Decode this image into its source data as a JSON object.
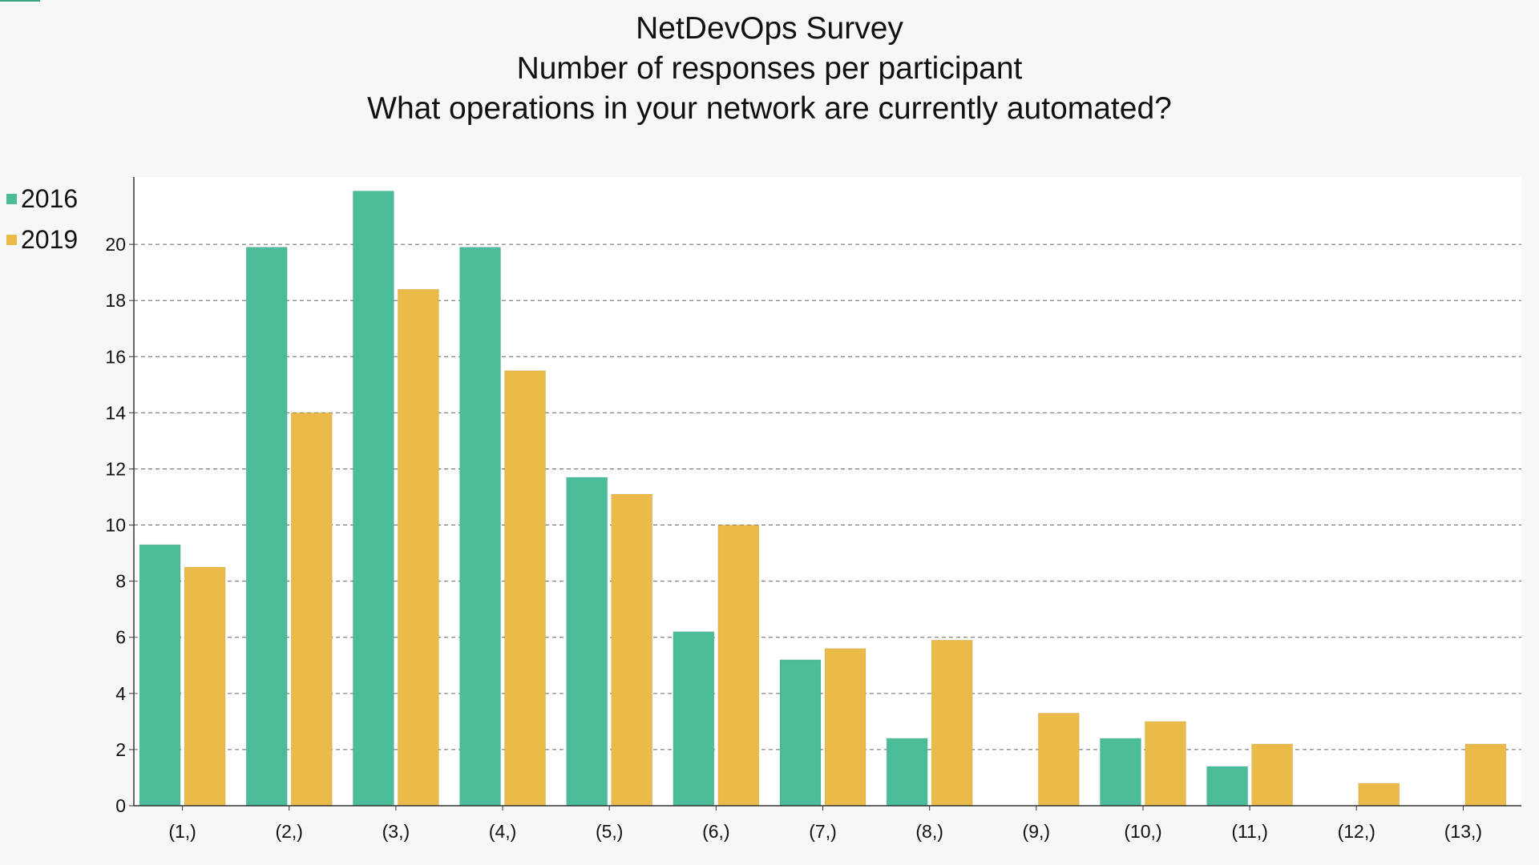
{
  "title": {
    "line1": "NetDevOps Survey",
    "line2": "Number of responses per participant",
    "line3": "What operations in your network are currently automated?"
  },
  "colors": {
    "series_2016": "#4bbc9a",
    "series_2019": "#ebbb4a",
    "grid": "#666666",
    "axis": "#333333",
    "plot_background": "#ffffff",
    "page_background": "#f7f7f7"
  },
  "chart_data": {
    "type": "bar",
    "title": "NetDevOps Survey\nNumber of responses per participant\nWhat operations in your network are currently automated?",
    "xlabel": "",
    "ylabel": "",
    "categories": [
      "(1,)",
      "(2,)",
      "(3,)",
      "(4,)",
      "(5,)",
      "(6,)",
      "(7,)",
      "(8,)",
      "(9,)",
      "(10,)",
      "(11,)",
      "(12,)",
      "(13,)"
    ],
    "series": [
      {
        "name": "2016",
        "values": [
          9.3,
          19.9,
          21.9,
          19.9,
          11.7,
          6.2,
          5.2,
          2.4,
          0,
          2.4,
          1.4,
          0,
          0
        ]
      },
      {
        "name": "2019",
        "values": [
          8.5,
          14.0,
          18.4,
          15.5,
          11.1,
          10.0,
          5.6,
          5.9,
          3.3,
          3.0,
          2.2,
          0.8,
          2.2
        ]
      }
    ],
    "ylim": [
      0,
      22.4
    ],
    "yticks": [
      "0",
      "2",
      "4",
      "6",
      "8",
      "10",
      "12",
      "14",
      "16",
      "18",
      "20"
    ],
    "grid": true,
    "grid_style": "dashed",
    "legend_position": "top-left, outside plot"
  }
}
